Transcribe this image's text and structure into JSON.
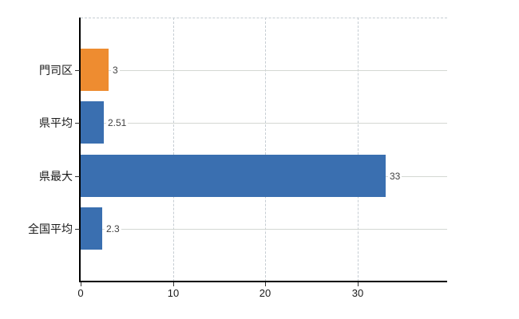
{
  "chart_data": {
    "type": "bar",
    "orientation": "horizontal",
    "title": "",
    "xlabel": "",
    "ylabel": "",
    "categories": [
      "門司区",
      "県平均",
      "県最大",
      "全国平均"
    ],
    "values": [
      3,
      2.51,
      33,
      2.3
    ],
    "value_labels": [
      "3",
      "2.51",
      "33",
      "2.3"
    ],
    "series_colors": [
      "#ee8c30",
      "#3a6fb0",
      "#3a6fb0",
      "#3a6fb0"
    ],
    "x_ticks": [
      0,
      10,
      20,
      30
    ],
    "xlim": [
      0,
      39.7
    ],
    "grid": true,
    "legend": false,
    "colors": {
      "highlight_bar": "#ee8c30",
      "default_bar": "#3a6fb0",
      "axis": "#000000",
      "gridline": "#d4d8d3",
      "dashed_gridline": "#c6cdd3",
      "text": "#1a1a1a",
      "value_text": "#3f3f3f",
      "background": "#ffffff"
    }
  }
}
